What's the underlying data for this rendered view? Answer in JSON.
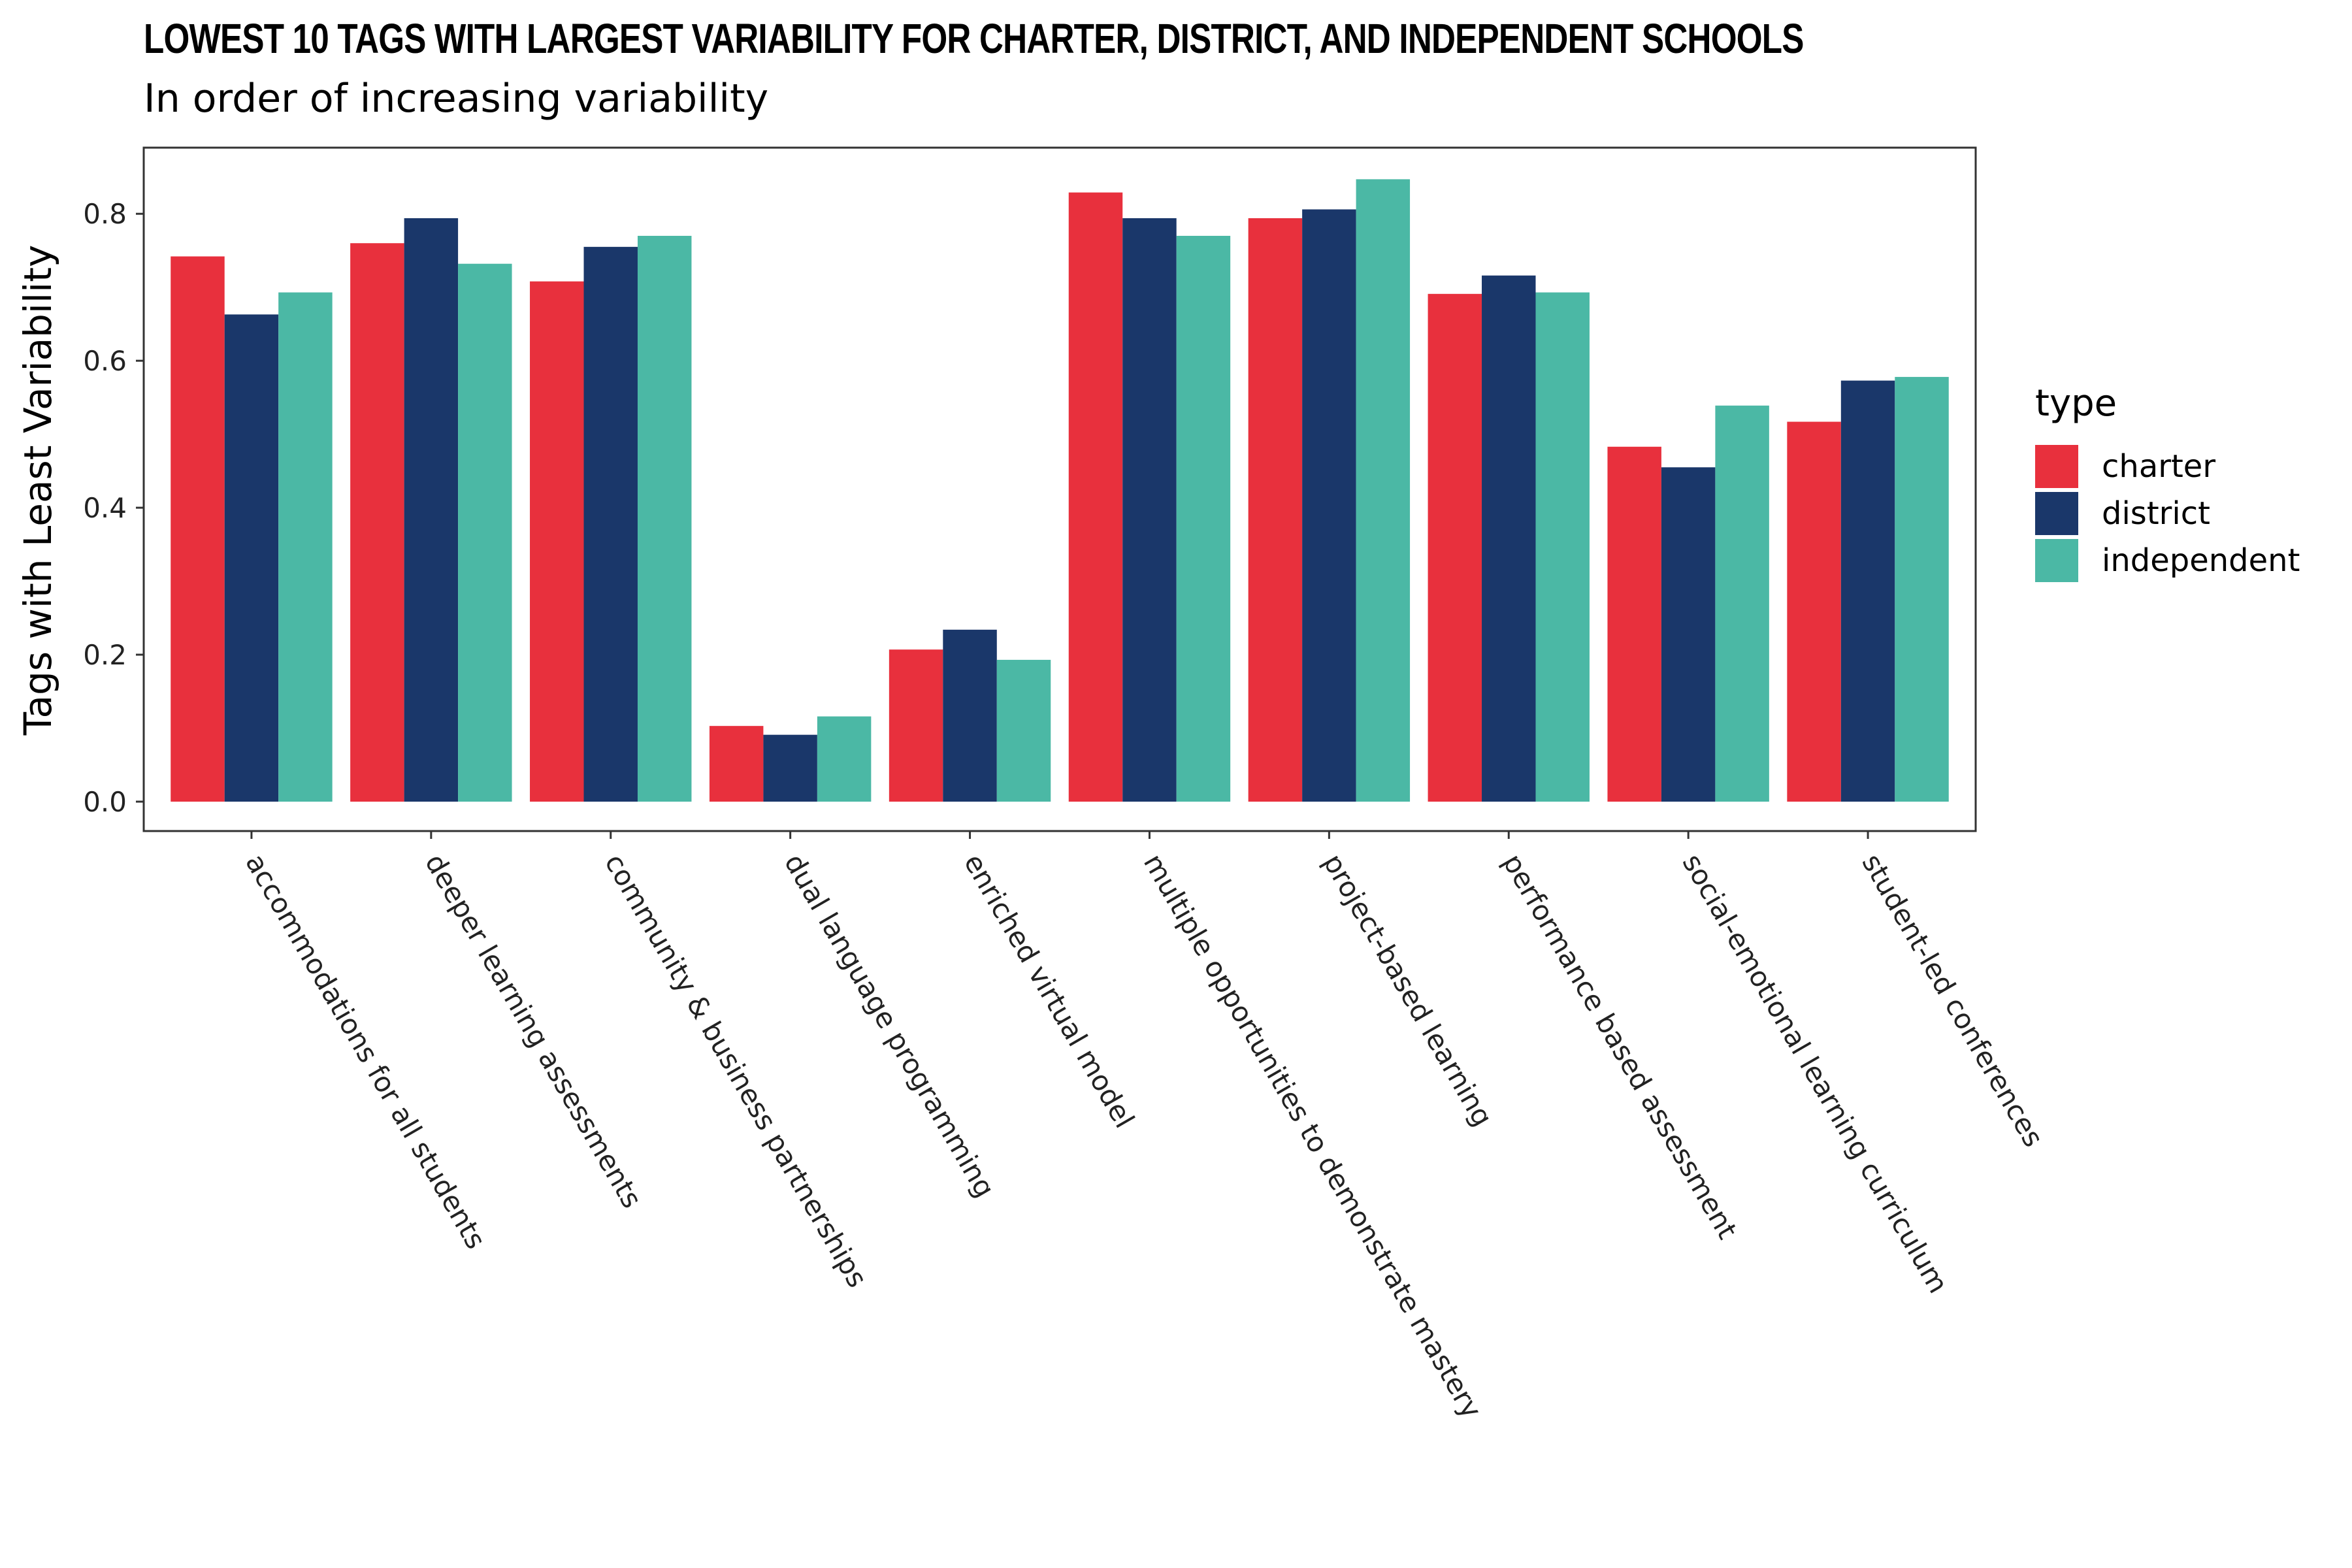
{
  "chart_data": {
    "type": "bar",
    "title": "Lowest 10 Tags with Largest Variability for Charter, District, and Independent Schools",
    "subtitle": "In order of increasing variability",
    "xlabel": "",
    "ylabel": "Tags with Least Variability",
    "ylim": [
      -0.04,
      0.89
    ],
    "yticks": [
      0.0,
      0.2,
      0.4,
      0.6,
      0.8
    ],
    "ytick_labels": [
      "0.0",
      "0.2",
      "0.4",
      "0.6",
      "0.8"
    ],
    "grid": false,
    "legend_placement": "right",
    "legend_title": "type",
    "categories": [
      "accommodations for all students",
      "deeper learning assessments",
      "community & business partnerships",
      "dual language programming",
      "enriched virtual model",
      "multiple opportunities to demonstrate mastery",
      "project-based learning",
      "performance based assessment",
      "social-emotional learning curriculum",
      "student-led conferences"
    ],
    "series": [
      {
        "name": "charter",
        "color": "#E8303D",
        "values": [
          0.742,
          0.76,
          0.708,
          0.103,
          0.207,
          0.829,
          0.794,
          0.691,
          0.483,
          0.517
        ]
      },
      {
        "name": "district",
        "color": "#1A376A",
        "values": [
          0.663,
          0.794,
          0.755,
          0.091,
          0.234,
          0.794,
          0.806,
          0.716,
          0.455,
          0.573
        ]
      },
      {
        "name": "independent",
        "color": "#4BB8A5",
        "values": [
          0.693,
          0.732,
          0.77,
          0.116,
          0.193,
          0.77,
          0.847,
          0.693,
          0.539,
          0.578
        ]
      }
    ]
  }
}
